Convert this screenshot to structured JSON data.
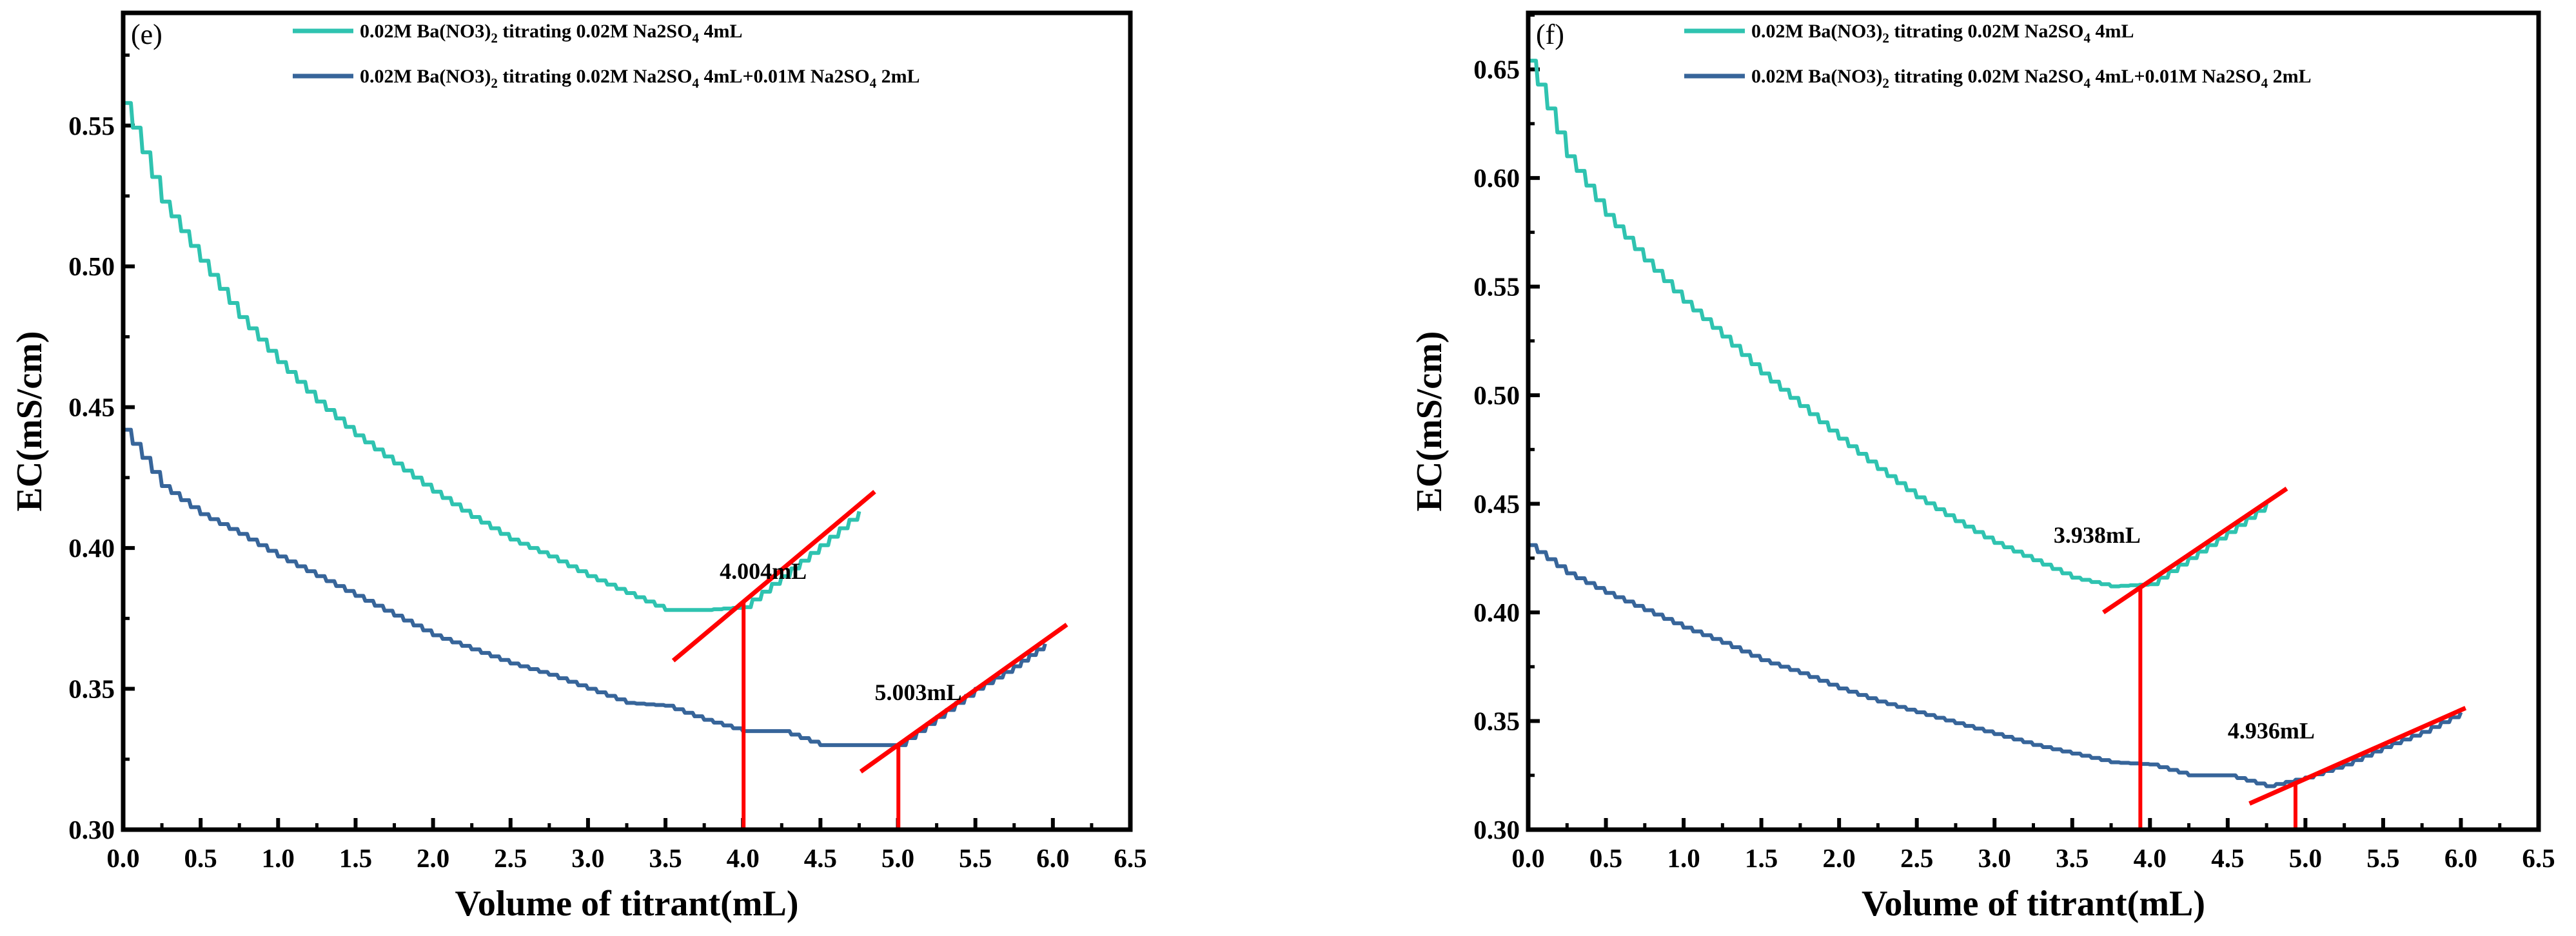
{
  "chart_data": [
    {
      "type": "line",
      "panel_label": "(e)",
      "xlabel": "Volume of titrant(mL)",
      "ylabel": "EC(mS/cm)",
      "xlim": [
        0,
        6.5
      ],
      "ylim": [
        0.3,
        0.59
      ],
      "xticks": [
        "0.0",
        "0.5",
        "1.0",
        "1.5",
        "2.0",
        "2.5",
        "3.0",
        "3.5",
        "4.0",
        "4.5",
        "5.0",
        "5.5",
        "6.0",
        "6.5"
      ],
      "yticks": [
        "0.30",
        "0.35",
        "0.40",
        "0.45",
        "0.50",
        "0.55"
      ],
      "legend_position": "top",
      "series": [
        {
          "name": "0.02M Ba(NO3)2 titrating  0.02M Na2SO4 4mL",
          "color": "#2fc3b0",
          "x": [
            0,
            0.25,
            0.5,
            0.75,
            1.0,
            1.25,
            1.5,
            1.75,
            2.0,
            2.25,
            2.5,
            2.75,
            3.0,
            3.25,
            3.5,
            3.75,
            4.0,
            4.25,
            4.5,
            4.75
          ],
          "y": [
            0.558,
            0.523,
            0.502,
            0.482,
            0.466,
            0.452,
            0.44,
            0.43,
            0.42,
            0.411,
            0.403,
            0.397,
            0.39,
            0.384,
            0.378,
            0.378,
            0.379,
            0.39,
            0.401,
            0.413
          ]
        },
        {
          "name": "0.02M Ba(NO3)2 titrating  0.02M Na2SO4 4mL+0.01M Na2SO4 2mL",
          "color": "#37659a",
          "x": [
            0,
            0.25,
            0.5,
            0.75,
            1.0,
            1.25,
            1.5,
            1.75,
            2.0,
            2.25,
            2.5,
            2.75,
            3.0,
            3.25,
            3.5,
            3.75,
            4.0,
            4.25,
            4.5,
            4.75,
            5.0,
            5.25,
            5.5,
            5.75,
            5.95
          ],
          "y": [
            0.442,
            0.422,
            0.412,
            0.405,
            0.397,
            0.39,
            0.383,
            0.376,
            0.369,
            0.364,
            0.359,
            0.355,
            0.35,
            0.345,
            0.344,
            0.339,
            0.335,
            0.335,
            0.33,
            0.33,
            0.33,
            0.34,
            0.35,
            0.358,
            0.366
          ]
        }
      ],
      "annotations": [
        {
          "label": "4.004mL",
          "endpoint": 4.004,
          "endpoint_y": 0.381,
          "tangent": [
            [
              3.55,
              0.36
            ],
            [
              4.85,
              0.42
            ]
          ],
          "label_at": [
            3.85,
            0.389
          ]
        },
        {
          "label": "5.003mL",
          "endpoint": 5.003,
          "endpoint_y": 0.33,
          "tangent": [
            [
              4.76,
              0.3206
            ],
            [
              6.09,
              0.3728
            ]
          ],
          "label_at": [
            4.85,
            0.346
          ]
        }
      ]
    },
    {
      "type": "line",
      "panel_label": "(f)",
      "xlabel": "Volume of titrant(mL)",
      "ylabel": "EC(mS/cm)",
      "xlim": [
        0,
        6.5
      ],
      "ylim": [
        0.3,
        0.676
      ],
      "xticks": [
        "0.0",
        "0.5",
        "1.0",
        "1.5",
        "2.0",
        "2.5",
        "3.0",
        "3.5",
        "4.0",
        "4.5",
        "5.0",
        "5.5",
        "6.0",
        "6.5"
      ],
      "yticks": [
        "0.30",
        "0.35",
        "0.40",
        "0.45",
        "0.50",
        "0.55",
        "0.60",
        "0.65"
      ],
      "legend_position": "top",
      "series": [
        {
          "name": "0.02M Ba(NO3)2 titrating  0.02M Na2SO4 4mL",
          "color": "#2fc3b0",
          "x": [
            0,
            0.25,
            0.5,
            0.75,
            1.0,
            1.25,
            1.5,
            1.75,
            2.0,
            2.25,
            2.5,
            2.75,
            3.0,
            3.25,
            3.5,
            3.75,
            4.0,
            4.25,
            4.5,
            4.75
          ],
          "y": [
            0.654,
            0.61,
            0.583,
            0.562,
            0.543,
            0.527,
            0.51,
            0.495,
            0.48,
            0.466,
            0.453,
            0.442,
            0.432,
            0.424,
            0.416,
            0.412,
            0.413,
            0.425,
            0.437,
            0.45
          ]
        },
        {
          "name": "0.02M Ba(NO3)2 titrating  0.02M Na2SO4 4mL+0.01M Na2SO4 2mL",
          "color": "#37659a",
          "x": [
            0,
            0.25,
            0.5,
            0.75,
            1.0,
            1.25,
            1.5,
            1.75,
            2.0,
            2.25,
            2.5,
            2.75,
            3.0,
            3.25,
            3.5,
            3.75,
            4.0,
            4.25,
            4.5,
            4.75,
            5.0,
            5.25,
            5.5,
            5.75,
            6.0
          ],
          "y": [
            0.431,
            0.418,
            0.409,
            0.401,
            0.393,
            0.386,
            0.378,
            0.372,
            0.365,
            0.359,
            0.354,
            0.349,
            0.344,
            0.339,
            0.335,
            0.331,
            0.33,
            0.325,
            0.325,
            0.32,
            0.324,
            0.33,
            0.338,
            0.345,
            0.354
          ]
        }
      ],
      "annotations": [
        {
          "label": "3.938mL",
          "endpoint": 3.938,
          "endpoint_y": 0.412,
          "tangent": [
            [
              3.7,
              0.4
            ],
            [
              4.88,
              0.457
            ]
          ],
          "label_at": [
            3.38,
            0.432
          ]
        },
        {
          "label": "4.936mL",
          "endpoint": 4.936,
          "endpoint_y": 0.321,
          "tangent": [
            [
              4.64,
              0.312
            ],
            [
              6.03,
              0.356
            ]
          ],
          "label_at": [
            4.5,
            0.342
          ]
        }
      ]
    }
  ]
}
